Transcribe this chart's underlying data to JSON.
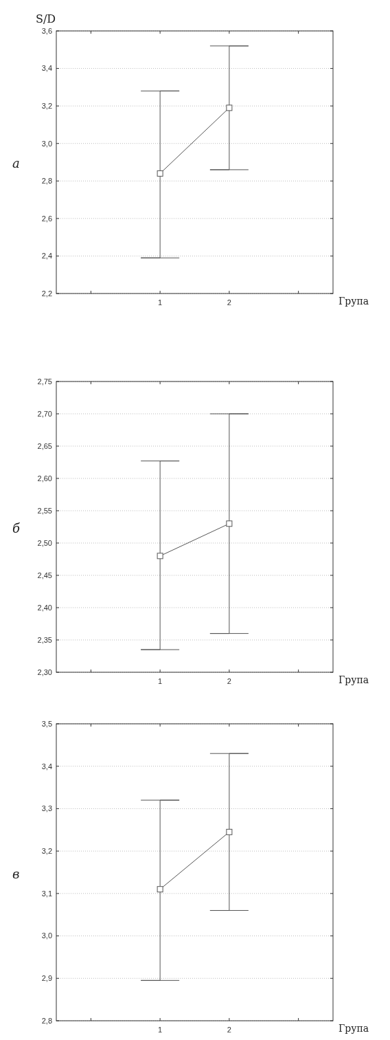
{
  "chart_data": [
    {
      "type": "line",
      "ylabel": "S/D",
      "xlabel": "Група",
      "annotations": [
        "а"
      ],
      "categories": [
        null,
        "1",
        "2",
        null
      ],
      "ylim": [
        2.2,
        3.6
      ],
      "yticks": [
        {
          "value": 2.2,
          "label": "2,2"
        },
        {
          "value": 2.4,
          "label": "2,4"
        },
        {
          "value": 2.6,
          "label": "2,6"
        },
        {
          "value": 2.8,
          "label": "2,8"
        },
        {
          "value": 3.0,
          "label": "3,0"
        },
        {
          "value": 3.2,
          "label": "3,2"
        },
        {
          "value": 3.4,
          "label": "3,4"
        },
        {
          "value": 3.6,
          "label": "3,6"
        }
      ],
      "grid": "y",
      "marker": "square",
      "line_style": "solid",
      "series": [
        {
          "color": "#555555",
          "values": [
            null,
            2.84,
            3.19,
            null
          ],
          "errors": [
            null,
            [
              2.39,
              3.28
            ],
            [
              2.86,
              3.52
            ],
            null
          ]
        }
      ]
    },
    {
      "type": "line",
      "xlabel": "Група",
      "annotations": [
        "б"
      ],
      "categories": [
        null,
        "1",
        "2",
        null
      ],
      "ylim": [
        2.3,
        2.75
      ],
      "yticks": [
        {
          "value": 2.3,
          "label": "2,30"
        },
        {
          "value": 2.35,
          "label": "2,35"
        },
        {
          "value": 2.4,
          "label": "2,40"
        },
        {
          "value": 2.45,
          "label": "2,45"
        },
        {
          "value": 2.5,
          "label": "2,50"
        },
        {
          "value": 2.55,
          "label": "2,55"
        },
        {
          "value": 2.6,
          "label": "2,60"
        },
        {
          "value": 2.65,
          "label": "2,65"
        },
        {
          "value": 2.7,
          "label": "2,70"
        },
        {
          "value": 2.75,
          "label": "2,75"
        }
      ],
      "grid": "y",
      "marker": "square",
      "line_style": "solid",
      "series": [
        {
          "color": "#555555",
          "values": [
            null,
            2.48,
            2.53,
            null
          ],
          "errors": [
            null,
            [
              2.335,
              2.627
            ],
            [
              2.36,
              2.7
            ],
            null
          ]
        }
      ]
    },
    {
      "type": "line",
      "xlabel": "Група",
      "annotations": [
        "в"
      ],
      "categories": [
        null,
        "1",
        "2",
        null
      ],
      "ylim": [
        2.8,
        3.5
      ],
      "yticks": [
        {
          "value": 2.8,
          "label": "2,8"
        },
        {
          "value": 2.9,
          "label": "2,9"
        },
        {
          "value": 3.0,
          "label": "3,0"
        },
        {
          "value": 3.1,
          "label": "3,1"
        },
        {
          "value": 3.2,
          "label": "3,2"
        },
        {
          "value": 3.3,
          "label": "3,3"
        },
        {
          "value": 3.4,
          "label": "3,4"
        },
        {
          "value": 3.5,
          "label": "3,5"
        }
      ],
      "grid": "y",
      "marker": "square",
      "line_style": "solid",
      "series": [
        {
          "color": "#555555",
          "values": [
            null,
            3.11,
            3.245,
            null
          ],
          "errors": [
            null,
            [
              2.895,
              3.32
            ],
            [
              3.06,
              3.43
            ],
            null
          ]
        }
      ]
    }
  ]
}
